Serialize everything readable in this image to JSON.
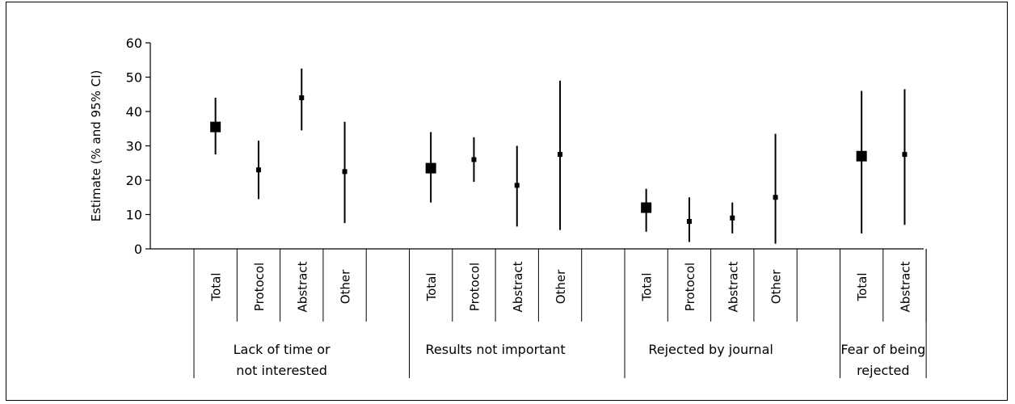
{
  "chart_data": {
    "type": "errorbar",
    "ylabel": "Estimate (% and 95% CI)",
    "ylim": [
      0,
      60
    ],
    "yticks": [
      0,
      10,
      20,
      30,
      40,
      50,
      60
    ],
    "groups": [
      {
        "label": "Lack of time or not interested",
        "label_lines": [
          "Lack of time or",
          "not interested"
        ],
        "points": [
          {
            "category": "Total",
            "estimate": 35.5,
            "lower": 27.5,
            "upper": 44,
            "total": true
          },
          {
            "category": "Protocol",
            "estimate": 23,
            "lower": 14.5,
            "upper": 31.5
          },
          {
            "category": "Abstract",
            "estimate": 44,
            "lower": 34.5,
            "upper": 52.5
          },
          {
            "category": "Other",
            "estimate": 22.5,
            "lower": 7.5,
            "upper": 37
          }
        ]
      },
      {
        "label": "Results not important",
        "label_lines": [
          "Results not important"
        ],
        "points": [
          {
            "category": "Total",
            "estimate": 23.5,
            "lower": 13.5,
            "upper": 34,
            "total": true
          },
          {
            "category": "Protocol",
            "estimate": 26,
            "lower": 19.5,
            "upper": 32.5
          },
          {
            "category": "Abstract",
            "estimate": 18.5,
            "lower": 6.5,
            "upper": 30
          },
          {
            "category": "Other",
            "estimate": 27.5,
            "lower": 5.5,
            "upper": 49
          }
        ]
      },
      {
        "label": "Rejected by journal",
        "label_lines": [
          "Rejected by journal"
        ],
        "points": [
          {
            "category": "Total",
            "estimate": 12,
            "lower": 5,
            "upper": 17.5,
            "total": true
          },
          {
            "category": "Protocol",
            "estimate": 8,
            "lower": 2,
            "upper": 15
          },
          {
            "category": "Abstract",
            "estimate": 9,
            "lower": 4.5,
            "upper": 13.5
          },
          {
            "category": "Other",
            "estimate": 15,
            "lower": 1.5,
            "upper": 33.5
          }
        ]
      },
      {
        "label": "Fear of being rejected",
        "label_lines": [
          "Fear of being",
          "rejected"
        ],
        "points": [
          {
            "category": "Total",
            "estimate": 27,
            "lower": 4.5,
            "upper": 46,
            "total": true
          },
          {
            "category": "Abstract",
            "estimate": 27.5,
            "lower": 7,
            "upper": 46.5
          }
        ]
      }
    ]
  }
}
